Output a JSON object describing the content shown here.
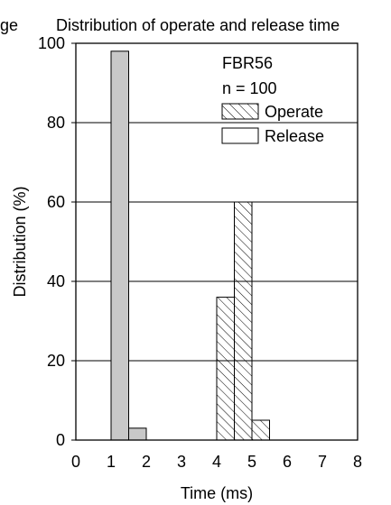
{
  "header": {
    "left_fragment": "ge",
    "title": "Distribution of operate and release time"
  },
  "chart_data": {
    "type": "bar",
    "title": "Distribution of operate and release time",
    "xlabel": "Time (ms)",
    "ylabel": "Distribution (%)",
    "xlim": [
      0,
      8
    ],
    "ylim": [
      0,
      100
    ],
    "xticks": [
      0,
      1,
      2,
      3,
      4,
      5,
      6,
      7,
      8
    ],
    "yticks": [
      0,
      20,
      40,
      60,
      80,
      100
    ],
    "grid": "horizontal",
    "legend_position": "top-right",
    "annotations": [
      "FBR56",
      "n = 100"
    ],
    "series": [
      {
        "name": "Operate",
        "style": "hatched",
        "bars": [
          {
            "x0": 4.0,
            "x1": 4.5,
            "value": 36
          },
          {
            "x0": 4.5,
            "x1": 5.0,
            "value": 60
          },
          {
            "x0": 5.0,
            "x1": 5.5,
            "value": 5
          }
        ]
      },
      {
        "name": "Release",
        "style": "gray-fill",
        "bars": [
          {
            "x0": 1.0,
            "x1": 1.5,
            "value": 98
          },
          {
            "x0": 1.5,
            "x1": 2.0,
            "value": 3
          }
        ]
      }
    ],
    "colors": {
      "release_fill": "#c8c8c8",
      "frame": "#000000",
      "background": "#ffffff"
    }
  }
}
